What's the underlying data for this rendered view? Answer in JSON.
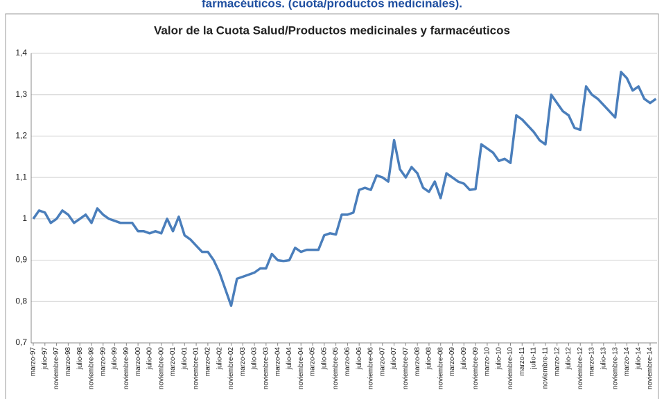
{
  "header": {
    "title": "farmacéuticos. (cuota/productos medicinales)."
  },
  "chart_data": {
    "type": "line",
    "title": "Valor de la Cuota Salud/Productos medicinales y farmacéuticos",
    "categories": [
      "marzo-97",
      null,
      "julio-97",
      null,
      "noviembre-97",
      null,
      "marzo-98",
      null,
      "julio-98",
      null,
      "noviembre-98",
      null,
      "marzo-99",
      null,
      "julio-99",
      null,
      "noviembre-99",
      null,
      "marzo-00",
      null,
      "julio-00",
      null,
      "noviembre-00",
      null,
      "marzo-01",
      null,
      "julio-01",
      null,
      "noviembre-01",
      null,
      "marzo-02",
      null,
      "julio-02",
      null,
      "noviembre-02",
      null,
      "marzo-03",
      null,
      "julio-03",
      null,
      "noviembre-03",
      null,
      "marzo-04",
      null,
      "julio-04",
      null,
      "noviembre-04",
      null,
      "marzo-05",
      null,
      "julio-05",
      null,
      "noviembre-05",
      null,
      "marzo-06",
      null,
      "julio-06",
      null,
      "noviembre-06",
      null,
      "marzo-07",
      null,
      "julio-07",
      null,
      "noviembre-07",
      null,
      "marzo-08",
      null,
      "julio-08",
      null,
      "noviembre-08",
      null,
      "marzo-09",
      null,
      "julio-09",
      null,
      "noviembre-09",
      null,
      "marzo-10",
      null,
      "julio-10",
      null,
      "noviembre-10",
      null,
      "marzo-11",
      null,
      "julio-11",
      null,
      "noviembre-11",
      null,
      "marzo-12",
      null,
      "julio-12",
      null,
      "noviembre-12",
      null,
      "marzo-13",
      null,
      "julio-13",
      null,
      "noviembre-13",
      null,
      "marzo-14",
      null,
      "julio-14",
      null,
      "noviembre-14",
      null
    ],
    "values": [
      1.0,
      1.02,
      1.015,
      0.99,
      1.0,
      1.02,
      1.01,
      0.99,
      1.0,
      1.01,
      0.99,
      1.025,
      1.01,
      1.0,
      0.995,
      0.99,
      0.99,
      0.99,
      0.97,
      0.97,
      0.965,
      0.97,
      0.965,
      1.0,
      0.97,
      1.005,
      0.96,
      0.95,
      0.935,
      0.92,
      0.92,
      0.9,
      0.87,
      0.83,
      0.79,
      0.855,
      0.86,
      0.865,
      0.87,
      0.88,
      0.88,
      0.915,
      0.9,
      0.898,
      0.9,
      0.93,
      0.92,
      0.925,
      0.925,
      0.925,
      0.96,
      0.965,
      0.962,
      1.01,
      1.01,
      1.015,
      1.07,
      1.075,
      1.07,
      1.105,
      1.1,
      1.09,
      1.19,
      1.12,
      1.1,
      1.125,
      1.11,
      1.075,
      1.065,
      1.09,
      1.05,
      1.11,
      1.1,
      1.09,
      1.085,
      1.07,
      1.072,
      1.18,
      1.17,
      1.16,
      1.14,
      1.145,
      1.135,
      1.25,
      1.24,
      1.225,
      1.21,
      1.19,
      1.18,
      1.3,
      1.28,
      1.26,
      1.25,
      1.22,
      1.215,
      1.32,
      1.3,
      1.29,
      1.275,
      1.26,
      1.245,
      1.355,
      1.34,
      1.31,
      1.32,
      1.29,
      1.28,
      1.29
    ],
    "color": "#4a7ebb",
    "ylim": [
      0.7,
      1.4
    ],
    "yticks": [
      {
        "value": 0.7,
        "label": "0,7"
      },
      {
        "value": 0.8,
        "label": "0,8"
      },
      {
        "value": 0.9,
        "label": "0,9"
      },
      1,
      {
        "value": 1.1,
        "label": "1,1"
      },
      {
        "value": 1.2,
        "label": "1,2"
      },
      {
        "value": 1.3,
        "label": "1,3"
      },
      {
        "value": 1.4,
        "label": "1,4"
      }
    ],
    "grid": true
  }
}
